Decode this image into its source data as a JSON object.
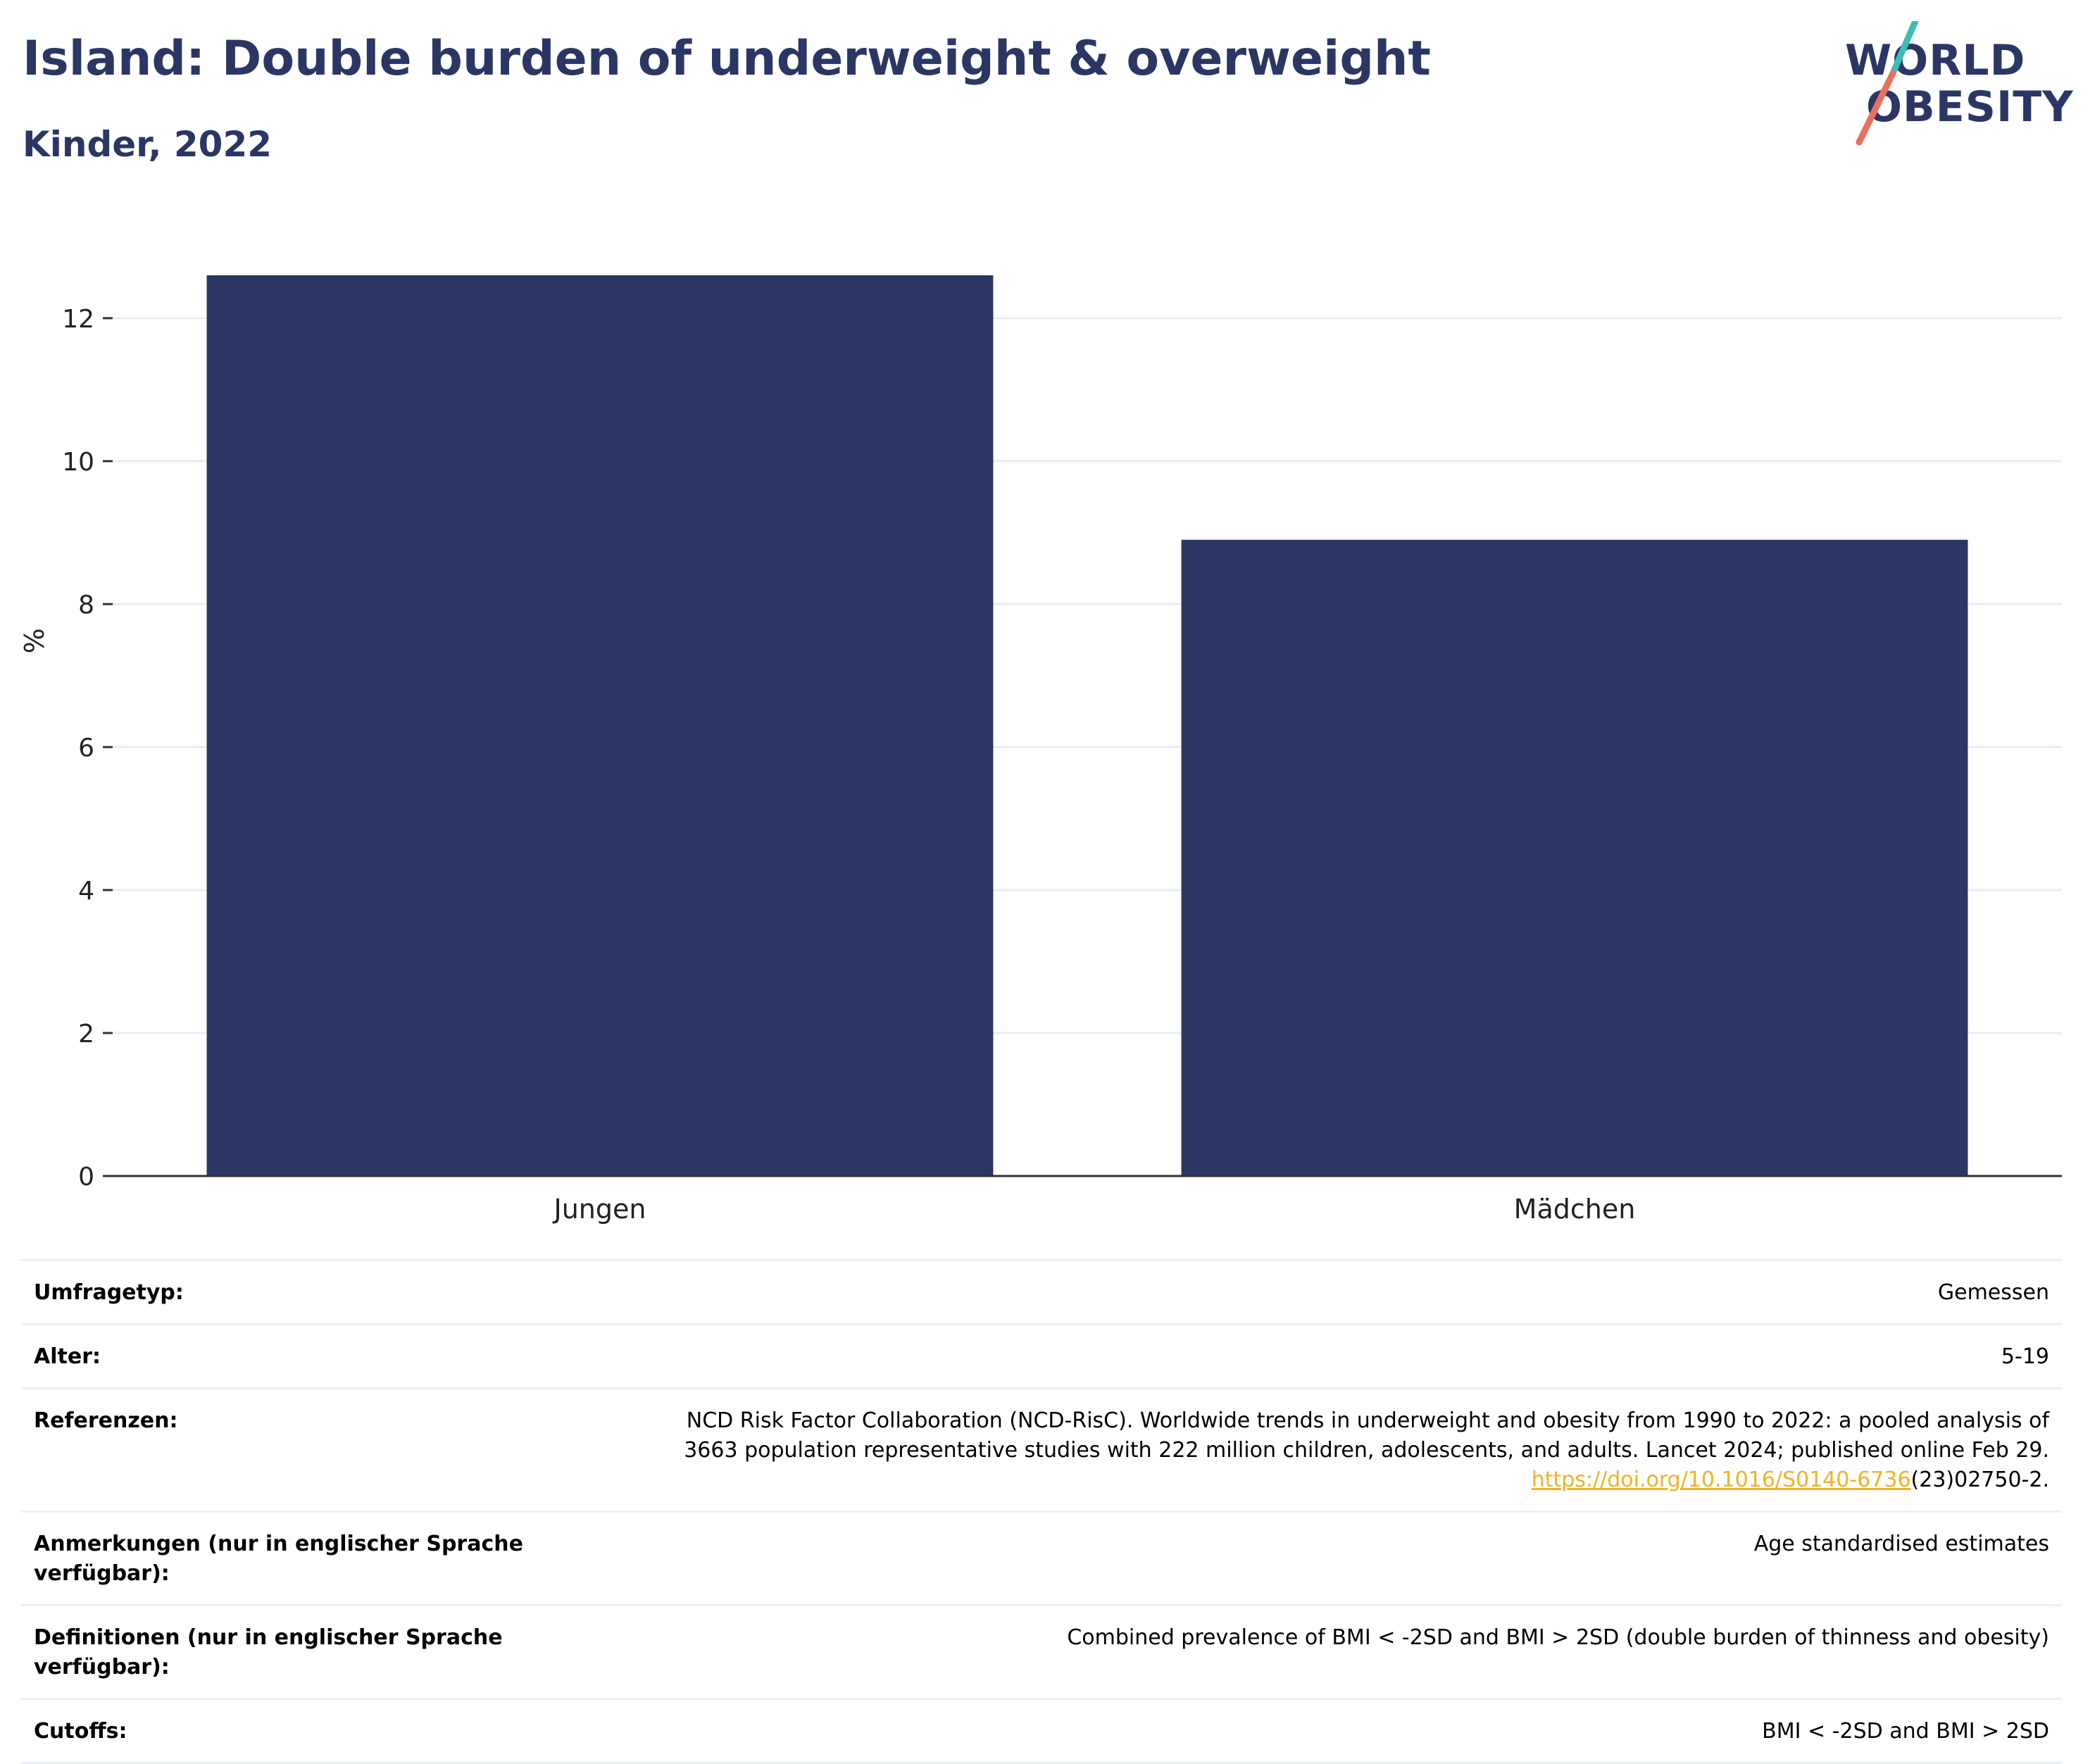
{
  "header": {
    "title": "Island: Double burden of underweight & overweight",
    "subtitle": "Kinder, 2022"
  },
  "logo": {
    "line1": "WORLD",
    "line2": "OBESITY"
  },
  "chart_data": {
    "type": "bar",
    "categories": [
      "Jungen",
      "Mädchen"
    ],
    "values": [
      12.6,
      8.9
    ],
    "title": "Island: Double burden of underweight & overweight",
    "subtitle": "Kinder, 2022",
    "xlabel": "",
    "ylabel": "%",
    "ylim": [
      0,
      13.2
    ],
    "yticks": [
      0,
      2,
      4,
      6,
      8,
      10,
      12
    ],
    "grid": true,
    "bar_color": "#2b3664"
  },
  "meta": {
    "survey": {
      "label": "Umfragetyp:",
      "value": "Gemessen"
    },
    "age": {
      "label": "Alter:",
      "value": "5-19"
    },
    "references": {
      "label": "Referenzen:",
      "line1": "NCD Risk Factor Collaboration (NCD-RisC). Worldwide trends in underweight and obesity from 1990 to 2022: a pooled analysis of",
      "line2": "3663 population representative studies with 222 million children, adolescents, and adults. Lancet 2024; published online Feb 29.",
      "link": "https://doi.org/10.1016/S0140-6736",
      "link_suffix": "(23)02750-2."
    },
    "notes": {
      "label": "Anmerkungen (nur in englischer Sprache verfügbar):",
      "value": "Age standardised estimates"
    },
    "definitions": {
      "label": "Definitionen (nur in englischer Sprache verfügbar):",
      "value": "Combined prevalence of BMI < -2SD and BMI > 2SD (double burden of thinness and obesity)"
    },
    "cutoffs": {
      "label": "Cutoffs:",
      "value": "BMI < -2SD and BMI > 2SD"
    }
  },
  "colors": {
    "primary": "#2b3664",
    "link": "#f0b323",
    "logo_teal": "#3bbfb5",
    "logo_coral": "#e8705e"
  }
}
